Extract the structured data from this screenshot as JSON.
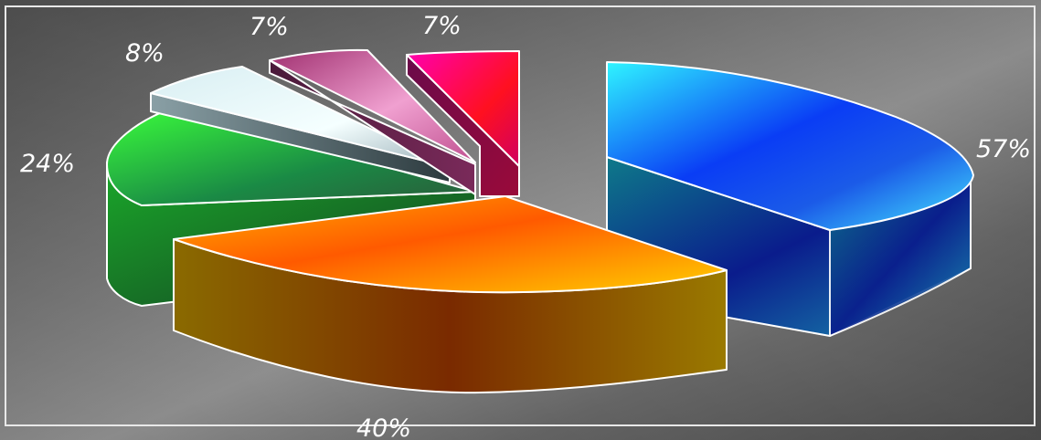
{
  "chart_data": {
    "type": "pie",
    "style": "3d-exploded",
    "title": "",
    "legend": "none",
    "slices": [
      {
        "label": "57%",
        "value": 57,
        "color": "#1236e0",
        "highlight": "#3fe8ff"
      },
      {
        "label": "40%",
        "value": 40,
        "color": "#ff6a00",
        "highlight": "#ffc400"
      },
      {
        "label": "24%",
        "value": 24,
        "color": "#1e9a3c",
        "highlight": "#33e833"
      },
      {
        "label": "8%",
        "value": 8,
        "color": "#a9c4cf",
        "highlight": "#eafcff"
      },
      {
        "label": "7%",
        "value": 7,
        "color": "#c8649e",
        "highlight": "#ffb4e0"
      },
      {
        "label": "7%",
        "value": 7,
        "color": "#ff0090",
        "highlight": "#ff1a1a"
      }
    ]
  }
}
